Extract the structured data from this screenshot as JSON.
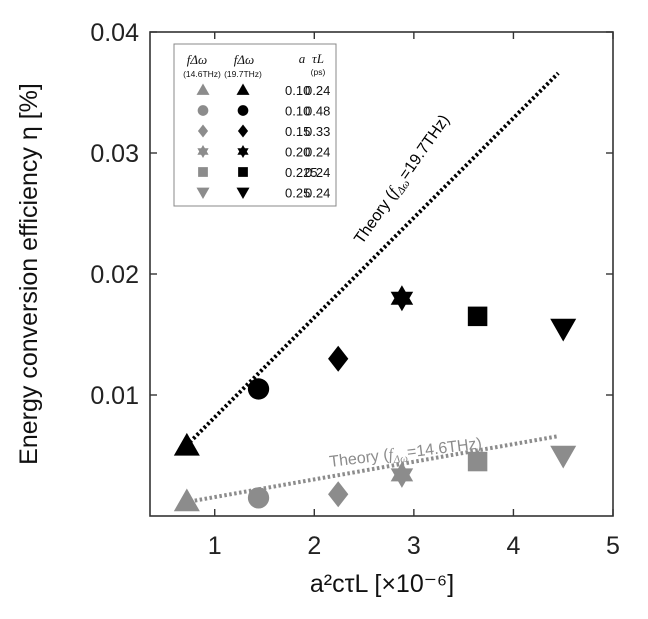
{
  "chart_data": {
    "type": "scatter",
    "title": "",
    "xlabel": "a²cτL [×10⁻⁶]",
    "ylabel": "Energy conversion efficiency η [%]",
    "xlim": [
      0.35,
      5.0
    ],
    "ylim": [
      0.0,
      0.04
    ],
    "x_ticks": [
      1,
      2,
      3,
      4,
      5
    ],
    "x_tick_labels": [
      "1",
      "2",
      "3",
      "4",
      "5"
    ],
    "y_ticks": [
      0.01,
      0.02,
      0.03,
      0.04
    ],
    "y_tick_labels": [
      "0.01",
      "0.02",
      "0.03",
      "0.04"
    ],
    "series": [
      {
        "name": "f_Δω (14.6THz)",
        "color": "#8c8c8c",
        "points": [
          {
            "x": 0.72,
            "y": 0.0012,
            "marker": "triangle-up"
          },
          {
            "x": 1.44,
            "y": 0.0015,
            "marker": "circle"
          },
          {
            "x": 2.24,
            "y": 0.0018,
            "marker": "diamond"
          },
          {
            "x": 2.88,
            "y": 0.0034,
            "marker": "star"
          },
          {
            "x": 3.64,
            "y": 0.0045,
            "marker": "square"
          },
          {
            "x": 4.5,
            "y": 0.005,
            "marker": "triangle-down"
          }
        ]
      },
      {
        "name": "f_Δω (19.7THz)",
        "color": "#000000",
        "points": [
          {
            "x": 0.72,
            "y": 0.0058,
            "marker": "triangle-up"
          },
          {
            "x": 1.44,
            "y": 0.0105,
            "marker": "circle"
          },
          {
            "x": 2.24,
            "y": 0.013,
            "marker": "diamond"
          },
          {
            "x": 2.88,
            "y": 0.018,
            "marker": "star"
          },
          {
            "x": 3.64,
            "y": 0.0165,
            "marker": "square"
          },
          {
            "x": 4.5,
            "y": 0.0155,
            "marker": "triangle-down"
          }
        ]
      }
    ],
    "theory_lines": [
      {
        "label": "19.7THz",
        "color": "#000000",
        "x": [
          0.75,
          4.45
        ],
        "y": [
          0.0061,
          0.0366
        ]
      },
      {
        "label": "14.6THz",
        "color": "#8c8c8c",
        "x": [
          0.75,
          4.45
        ],
        "y": [
          0.0012,
          0.0066
        ]
      }
    ],
    "annotations": [
      {
        "prefix": "Theory (",
        "fsym": "f",
        "fsub": "Δω",
        "suffix": "=19.7THz)",
        "color": "#000000"
      },
      {
        "prefix": "Theory (",
        "fsym": "f",
        "fsub": "Δω",
        "suffix": "=14.6THz)",
        "color": "#8c8c8c"
      }
    ],
    "legend": {
      "placement": "top-left",
      "col1_head": "fΔω",
      "col1_sub": "(14.6THz)",
      "col2_head": "fΔω",
      "col2_sub": "(19.7THz)",
      "col3_head": "a",
      "col4_head": "τL",
      "col4_sub": "(ps)",
      "rows": [
        {
          "marker": "triangle-up",
          "a": "0.10",
          "tau": "0.24"
        },
        {
          "marker": "circle",
          "a": "0.10",
          "tau": "0.48"
        },
        {
          "marker": "diamond",
          "a": "0.15",
          "tau": "0.33"
        },
        {
          "marker": "star",
          "a": "0.20",
          "tau": "0.24"
        },
        {
          "marker": "square",
          "a": "0.225",
          "tau": "0.24"
        },
        {
          "marker": "triangle-down",
          "a": "0.25",
          "tau": "0.24"
        }
      ]
    }
  }
}
